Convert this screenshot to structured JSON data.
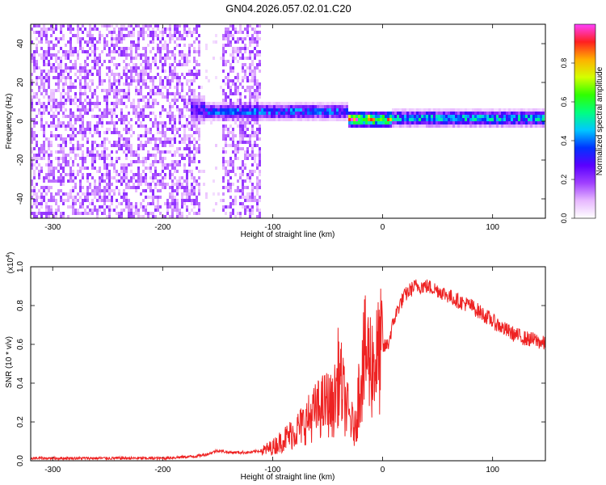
{
  "title": "GN04.2026.057.02.01.C20",
  "chart_data": [
    {
      "type": "heatmap",
      "title": "GN04.2026.057.02.01.C20",
      "xlabel": "Height of straight line (km)",
      "ylabel": "Frequency (Hz)",
      "xlim": [
        -320,
        148
      ],
      "ylim": [
        -50,
        50
      ],
      "x_ticks": [
        -300,
        -200,
        -100,
        0,
        100
      ],
      "y_ticks": [
        -40,
        -20,
        0,
        20,
        40
      ],
      "grid": false,
      "colormap": [
        "#ffffff",
        "#e7b8ff",
        "#a040ff",
        "#5a00ff",
        "#0033ff",
        "#00c8ff",
        "#00ff80",
        "#30ff00",
        "#d4ff00",
        "#ffb000",
        "#ff2020",
        "#ff40ff"
      ],
      "colorbar": {
        "label": "Normalized spectral amplitude",
        "range": [
          0.0,
          1.0
        ],
        "ticks": [
          "0.0",
          "0.2",
          "0.4",
          "0.6",
          "0.8"
        ]
      },
      "regions": [
        {
          "name": "noise",
          "x_range": [
            -320,
            -110
          ],
          "freq_range": [
            -50,
            50
          ],
          "amplitude": 0.15
        },
        {
          "name": "signal-onset",
          "x_range": [
            -175,
            -160
          ],
          "center_freq": 6,
          "amplitude": 0.35
        },
        {
          "name": "signal-band",
          "x_range": [
            -160,
            -30
          ],
          "center_freq": 5,
          "amplitude": 0.45
        },
        {
          "name": "signal-band",
          "x_range": [
            -30,
            10
          ],
          "center_freq": 1,
          "amplitude": 0.9
        },
        {
          "name": "signal-band",
          "x_range": [
            10,
            148
          ],
          "center_freq": 1.5,
          "amplitude": 0.55
        }
      ]
    },
    {
      "type": "line",
      "xlabel": "Height of straight line (km)",
      "ylabel": "SNR (10 * v/v)",
      "y_multiplier": "(x10",
      "y_multiplier_exp": "4",
      "xlim": [
        -320,
        148
      ],
      "ylim": [
        0,
        1.0
      ],
      "x_ticks": [
        -300,
        -200,
        -100,
        0,
        100
      ],
      "y_ticks": [
        "0.0",
        "0.2",
        "0.4",
        "0.6",
        "0.8",
        "1.0"
      ],
      "color": "#ee2222",
      "series": [
        {
          "x": [
            -320,
            -260,
            -200,
            -170,
            -160,
            -150,
            -140,
            -130,
            -120,
            -110,
            -100,
            -90,
            -80,
            -70,
            -60,
            -50,
            -45,
            -40,
            -35,
            -30,
            -25,
            -20,
            -15,
            -10,
            -5,
            0,
            5,
            10,
            15,
            20,
            25,
            30,
            35,
            40,
            50,
            60,
            70,
            80,
            90,
            100,
            110,
            120,
            130,
            140,
            148
          ],
          "y": [
            0.01,
            0.01,
            0.01,
            0.02,
            0.03,
            0.05,
            0.04,
            0.04,
            0.04,
            0.05,
            0.07,
            0.11,
            0.15,
            0.2,
            0.26,
            0.3,
            0.27,
            0.45,
            0.32,
            0.22,
            0.16,
            0.45,
            0.55,
            0.5,
            0.52,
            0.58,
            0.6,
            0.72,
            0.8,
            0.85,
            0.88,
            0.9,
            0.9,
            0.9,
            0.88,
            0.85,
            0.82,
            0.8,
            0.76,
            0.72,
            0.68,
            0.65,
            0.63,
            0.62,
            0.6
          ]
        }
      ]
    }
  ]
}
